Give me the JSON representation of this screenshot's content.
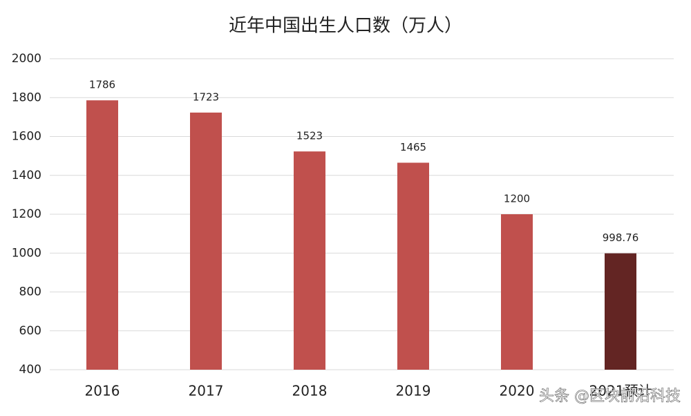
{
  "chart_data": {
    "type": "bar",
    "title": "近年中国出生人口数（万人）",
    "categories": [
      "2016",
      "2017",
      "2018",
      "2019",
      "2020",
      "2021预计"
    ],
    "values": [
      1786,
      1723,
      1523,
      1465,
      1200,
      998.76
    ],
    "colors": [
      "#c0504d",
      "#c0504d",
      "#c0504d",
      "#c0504d",
      "#c0504d",
      "#632523"
    ],
    "ylim": [
      400,
      2000
    ],
    "yticks": [
      400,
      600,
      800,
      1000,
      1200,
      1400,
      1600,
      1800,
      2000
    ],
    "grid": true,
    "watermark": "头条 @区块前沿科技"
  }
}
